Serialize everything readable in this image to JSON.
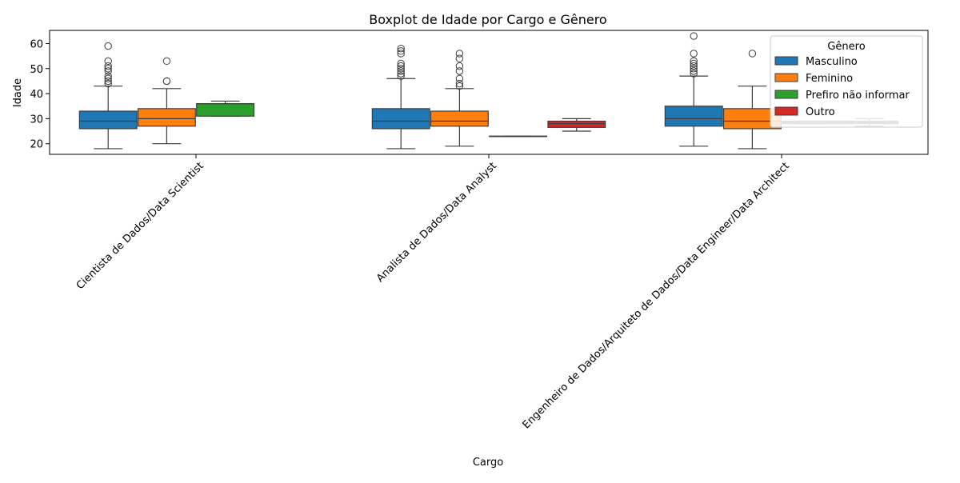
{
  "chart_data": {
    "type": "boxplot",
    "title": "Boxplot de Idade por Cargo e Gênero",
    "xlabel": "Cargo",
    "ylabel": "Idade",
    "ylim": [
      15.75,
      65.25
    ],
    "yticks": [
      20,
      30,
      40,
      50,
      60
    ],
    "categories": [
      "Cientista de Dados/Data Scientist",
      "Analista de Dados/Data Analyst",
      "Engenheiro de Dados/Arquiteto de Dados/Data Engineer/Data Architect"
    ],
    "legend": {
      "title": "Gênero",
      "placement": "top-right"
    },
    "series": [
      {
        "name": "Masculino",
        "color": "#1f77b4",
        "boxes": [
          {
            "whisker_low": 18,
            "q1": 26,
            "median": 29,
            "q3": 33,
            "whisker_high": 43,
            "outliers": [
              44,
              45,
              46,
              47,
              49,
              50,
              51,
              53,
              59
            ]
          },
          {
            "whisker_low": 18,
            "q1": 26,
            "median": 29,
            "q3": 34,
            "whisker_high": 46,
            "outliers": [
              47,
              48,
              49,
              50,
              51,
              52,
              56,
              57,
              58
            ]
          },
          {
            "whisker_low": 19,
            "q1": 27,
            "median": 30,
            "q3": 35,
            "whisker_high": 47,
            "outliers": [
              48,
              49,
              50,
              51,
              52,
              53,
              56,
              63
            ]
          }
        ]
      },
      {
        "name": "Feminino",
        "color": "#ff7f0e",
        "boxes": [
          {
            "whisker_low": 20,
            "q1": 27,
            "median": 30,
            "q3": 34,
            "whisker_high": 42,
            "outliers": [
              45,
              45,
              53
            ]
          },
          {
            "whisker_low": 19,
            "q1": 27,
            "median": 29,
            "q3": 33,
            "whisker_high": 42,
            "outliers": [
              43,
              44,
              46,
              49,
              51,
              54,
              56
            ]
          },
          {
            "whisker_low": 18,
            "q1": 26,
            "median": 29,
            "q3": 34,
            "whisker_high": 43,
            "outliers": [
              56
            ]
          }
        ]
      },
      {
        "name": "Prefiro não informar",
        "color": "#2ca02c",
        "boxes": [
          {
            "whisker_low": 31,
            "q1": 31,
            "median": 36,
            "q3": 36,
            "whisker_high": 37,
            "outliers": []
          },
          {
            "whisker_low": 23,
            "q1": 23,
            "median": 23,
            "q3": 23,
            "whisker_high": 23,
            "outliers": []
          },
          {
            "whisker_low": 28,
            "q1": 28,
            "median": 28.5,
            "q3": 29,
            "whisker_high": 29,
            "outliers": []
          }
        ]
      },
      {
        "name": "Outro",
        "color": "#d62728",
        "boxes": [
          null,
          {
            "whisker_low": 25,
            "q1": 26.5,
            "median": 28,
            "q3": 29,
            "whisker_high": 30,
            "outliers": []
          },
          {
            "whisker_low": 27,
            "q1": 28,
            "median": 28.5,
            "q3": 29,
            "whisker_high": 30,
            "outliers": []
          }
        ]
      }
    ]
  }
}
